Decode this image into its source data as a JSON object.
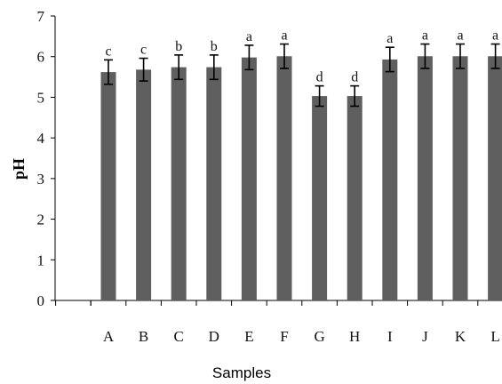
{
  "chart_data": {
    "type": "bar",
    "title": "",
    "xlabel": "Samples",
    "ylabel": "pH",
    "ylim": [
      0,
      7
    ],
    "yticks": [
      "0",
      "1",
      "2",
      "3",
      "4",
      "5",
      "6",
      "7"
    ],
    "grid": false,
    "legend": "none",
    "categories": [
      "A",
      "B",
      "C",
      "D",
      "E",
      "F",
      "G",
      "H",
      "I",
      "J",
      "K",
      "L"
    ],
    "values": [
      5.62,
      5.68,
      5.74,
      5.74,
      5.98,
      6.01,
      5.03,
      5.03,
      5.93,
      6.01,
      6.01,
      6.01
    ],
    "errors": [
      0.3,
      0.28,
      0.3,
      0.3,
      0.3,
      0.3,
      0.25,
      0.25,
      0.3,
      0.3,
      0.3,
      0.3
    ],
    "significance": [
      "c",
      "c",
      "b",
      "b",
      "a",
      "a",
      "d",
      "d",
      "a",
      "a",
      "a",
      "a"
    ],
    "colors": {
      "bar": "#5f5f5f",
      "axis": "#000000",
      "error": "#000000"
    }
  }
}
